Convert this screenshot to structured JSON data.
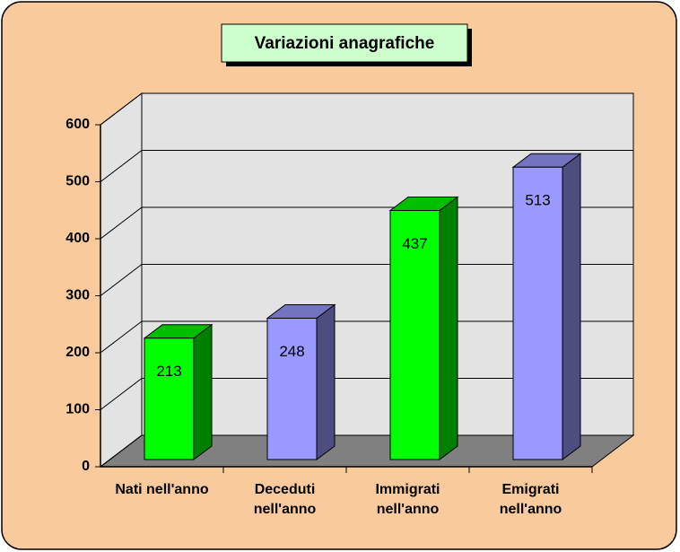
{
  "chart_data": {
    "type": "bar3d",
    "title": "Variazioni anagrafiche",
    "categories": [
      "Nati nell'anno",
      "Deceduti nell'anno",
      "Immigrati nell'anno",
      "Emigrati nell'anno"
    ],
    "values": [
      213,
      248,
      437,
      513
    ],
    "colors": [
      "#00FF00",
      "#9999FF",
      "#00FF00",
      "#9999FF"
    ],
    "ylim": [
      0,
      600
    ],
    "yticks": [
      0,
      100,
      200,
      300,
      400,
      500,
      600
    ],
    "grid": true
  }
}
